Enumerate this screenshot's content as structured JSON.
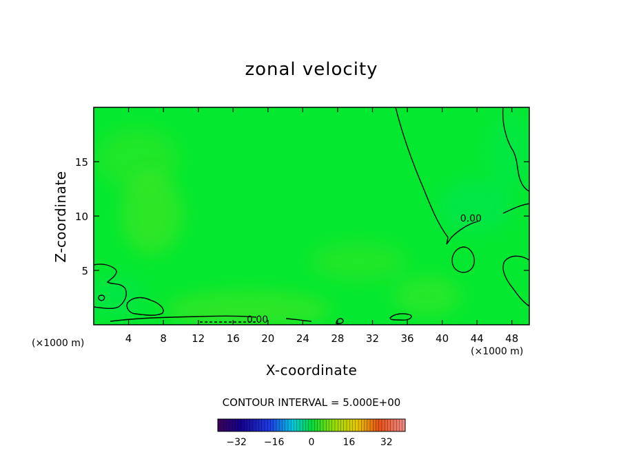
{
  "chart_data": {
    "type": "heatmap",
    "title": "zonal velocity",
    "xlabel": "X-coordinate",
    "ylabel": "Z-coordinate",
    "x_units": "(×1000 m)",
    "y_units": "(×1000 m)",
    "xlim": [
      0,
      50
    ],
    "ylim": [
      0,
      20
    ],
    "x_ticks": [
      4,
      8,
      12,
      16,
      20,
      24,
      28,
      32,
      36,
      40,
      44,
      48
    ],
    "y_ticks": [
      5,
      10,
      15
    ],
    "field_value_range": [
      -3,
      3
    ],
    "contour_labels": [
      {
        "text": "0.00",
        "x": 18.8,
        "z": 0.5
      },
      {
        "text": "0.00",
        "x": 43.3,
        "z": 9.8
      }
    ],
    "contour_interval_text": "CONTOUR INTERVAL = 5.000E+00",
    "colorbar": {
      "min": -40,
      "max": 40,
      "ticks": [
        -32,
        -16,
        0,
        16,
        32
      ]
    },
    "colors": {
      "field_base": "#05e830",
      "field_warm": "#4ce621",
      "field_cool": "#05e655",
      "contour": "#000000"
    }
  }
}
